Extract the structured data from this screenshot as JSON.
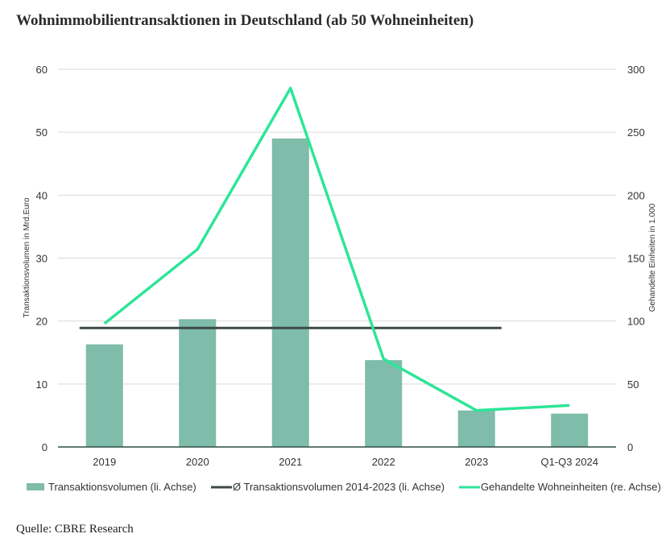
{
  "title": "Wohnimmobilientransaktionen in Deutschland (ab 50 Wohneinheiten)",
  "source": "Quelle: CBRE Research",
  "chart_data": {
    "type": "bar",
    "categories": [
      "2019",
      "2020",
      "2021",
      "2022",
      "2023",
      "Q1-Q3 2024"
    ],
    "series": [
      {
        "name": "Transaktionsvolumen (li. Achse)",
        "type": "bar",
        "axis": "left",
        "values": [
          16.3,
          20.3,
          49.0,
          13.8,
          5.8,
          5.3
        ],
        "color": "#7fbcaa"
      },
      {
        "name": "Ø Transaktionsvolumen 2014-2023 (li. Achse)",
        "type": "line",
        "axis": "left",
        "values": [
          18.9,
          18.9,
          18.9,
          18.9,
          18.9,
          null
        ],
        "color": "#3d4a47"
      },
      {
        "name": "Gehandelte Wohneinheiten (re. Achse)",
        "type": "line",
        "axis": "right",
        "values": [
          98,
          157,
          285,
          70,
          29,
          33
        ],
        "color": "#2ee598"
      }
    ],
    "ylabel_left": "Transaktionsvolumen in Mrd.Euro",
    "ylabel_right": "Gehandelte Einheiten in 1.000",
    "ylim_left": [
      0,
      60
    ],
    "ylim_right": [
      0,
      300
    ],
    "yticks_left": [
      "0",
      "10",
      "20",
      "30",
      "40",
      "50",
      "60"
    ],
    "yticks_right": [
      "0",
      "50",
      "100",
      "150",
      "200",
      "250",
      "300"
    ],
    "grid": true,
    "legend": "bottom"
  }
}
